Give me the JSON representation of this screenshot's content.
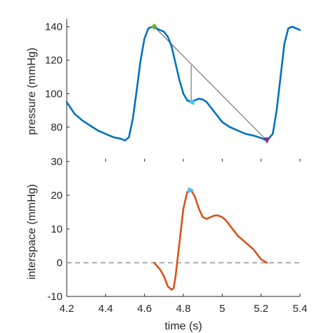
{
  "chart_data": [
    {
      "type": "line",
      "ylabel": "pressure (mmHg)",
      "xlim": [
        4.2,
        5.4
      ],
      "ylim": [
        65,
        143
      ],
      "y_ticks": [
        "80",
        "100",
        "120",
        "140"
      ],
      "grid": false,
      "series": [
        {
          "color": "#0072BD",
          "x": [
            4.2,
            4.24,
            4.28,
            4.32,
            4.36,
            4.4,
            4.44,
            4.48,
            4.5,
            4.52,
            4.54,
            4.56,
            4.58,
            4.6,
            4.62,
            4.64,
            4.65,
            4.66,
            4.68,
            4.7,
            4.72,
            4.74,
            4.76,
            4.78,
            4.8,
            4.82,
            4.84,
            4.86,
            4.88,
            4.9,
            4.92,
            4.94,
            4.96,
            4.98,
            5.0,
            5.04,
            5.08,
            5.12,
            5.16,
            5.2,
            5.23,
            5.26,
            5.28,
            5.3,
            5.32,
            5.34,
            5.36,
            5.38,
            5.4
          ],
          "y": [
            95,
            88,
            84,
            81,
            78,
            76,
            74,
            73,
            72,
            74,
            85,
            102,
            120,
            133,
            139,
            140,
            140,
            139,
            138,
            137,
            134,
            128,
            118,
            108,
            100,
            96,
            95,
            96,
            97,
            96.5,
            95,
            92,
            89,
            86,
            83,
            80,
            78,
            76,
            75,
            73.5,
            72,
            76,
            90,
            110,
            130,
            139,
            140,
            139,
            138
          ]
        }
      ],
      "annotations": {
        "chord_start": [
          4.65,
          140
        ],
        "chord_end": [
          5.23,
          72
        ],
        "drop_line_x": 4.84,
        "drop_line_top": 117,
        "drop_line_bottom": 95,
        "markers": [
          {
            "x": 4.65,
            "y": 140,
            "color": "#77AC30",
            "shape": "diamond"
          },
          {
            "x": 4.84,
            "y": 95,
            "color": "#4DBEEE",
            "shape": "triangle-left"
          },
          {
            "x": 5.23,
            "y": 72,
            "color": "#7E2F8E",
            "shape": "triangle-down"
          }
        ]
      }
    },
    {
      "type": "line",
      "xlabel": "time (s)",
      "ylabel": "interspace (mmHg)",
      "xlim": [
        4.2,
        5.4
      ],
      "ylim": [
        -10,
        30
      ],
      "x_ticks": [
        "4.2",
        "4.4",
        "4.6",
        "4.8",
        "5",
        "5.2",
        "5.4"
      ],
      "y_ticks": [
        "-10",
        "0",
        "10",
        "20",
        "30"
      ],
      "grid": false,
      "zero_line": {
        "y": 0,
        "style": "dashed",
        "color": "#7f7f7f"
      },
      "series": [
        {
          "color": "#D95319",
          "x": [
            4.65,
            4.68,
            4.7,
            4.72,
            4.74,
            4.75,
            4.76,
            4.78,
            4.8,
            4.82,
            4.84,
            4.86,
            4.88,
            4.9,
            4.92,
            4.94,
            4.96,
            4.98,
            5.0,
            5.02,
            5.04,
            5.06,
            5.08,
            5.1,
            5.12,
            5.14,
            5.16,
            5.18,
            5.2,
            5.23
          ],
          "y": [
            0,
            -2,
            -4,
            -7,
            -8,
            -7.5,
            -4,
            6,
            16,
            21,
            21.5,
            19.5,
            16,
            13.5,
            13,
            13.5,
            14,
            14,
            13.5,
            12.5,
            11,
            9.5,
            8,
            7,
            6,
            5,
            4,
            2.5,
            1,
            0
          ]
        }
      ],
      "markers": [
        {
          "x": 4.84,
          "y": 21.5,
          "color": "#4DBEEE",
          "shape": "triangle-right"
        }
      ]
    }
  ]
}
